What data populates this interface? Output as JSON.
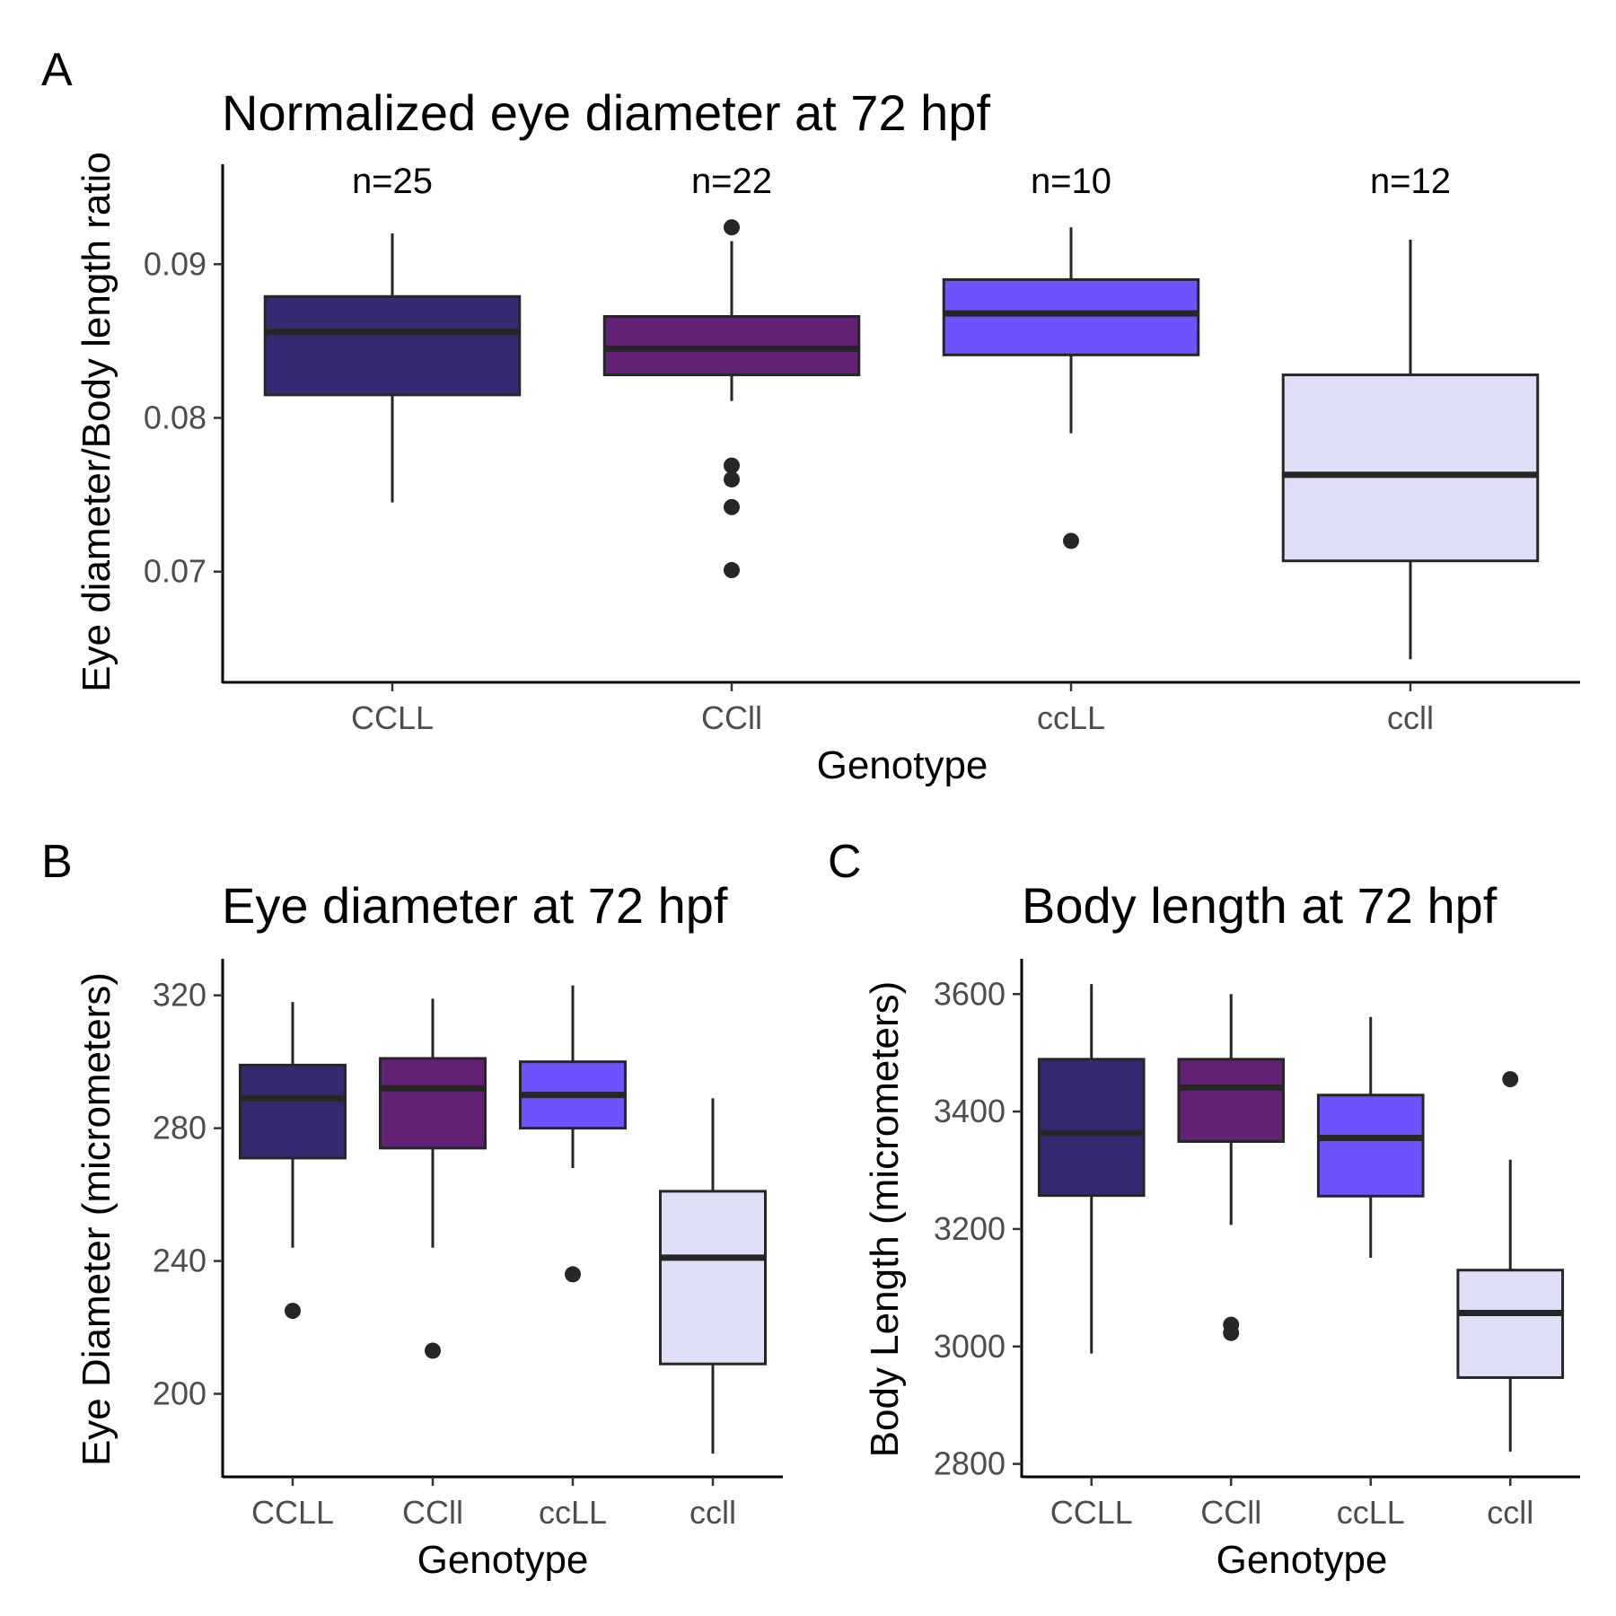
{
  "chart_data": [
    {
      "panel": "A",
      "type": "box",
      "title": "Normalized eye diameter at 72 hpf",
      "xlabel": "Genotype",
      "ylabel": "Eye diameter/Body length ratio",
      "categories": [
        "CCLL",
        "CCll",
        "ccLL",
        "ccll"
      ],
      "counts": [
        "n=25",
        "n=22",
        "n=10",
        "n=12"
      ],
      "ylim": [
        0.0628,
        0.0965
      ],
      "yticks": [
        0.07,
        0.08,
        0.09
      ],
      "ytick_labels": [
        "0.07",
        "0.08",
        "0.09"
      ],
      "boxes": [
        {
          "category": "CCLL",
          "whisker_low": 0.0745,
          "q1": 0.0815,
          "median": 0.0856,
          "q3": 0.0879,
          "whisker_high": 0.092,
          "outliers": []
        },
        {
          "category": "CCll",
          "whisker_low": 0.0811,
          "q1": 0.0828,
          "median": 0.0845,
          "q3": 0.0866,
          "whisker_high": 0.0915,
          "outliers": [
            0.0924,
            0.0769,
            0.076,
            0.0742,
            0.0701
          ]
        },
        {
          "category": "ccLL",
          "whisker_low": 0.079,
          "q1": 0.0841,
          "median": 0.0868,
          "q3": 0.089,
          "whisker_high": 0.0924,
          "outliers": [
            0.072
          ]
        },
        {
          "category": "ccll",
          "whisker_low": 0.0643,
          "q1": 0.0707,
          "median": 0.0763,
          "q3": 0.0828,
          "whisker_high": 0.0916,
          "outliers": []
        }
      ]
    },
    {
      "panel": "B",
      "type": "box",
      "title": "Eye diameter at 72 hpf",
      "xlabel": "Genotype",
      "ylabel": "Eye Diameter (micrometers)",
      "categories": [
        "CCLL",
        "CCll",
        "ccLL",
        "ccll"
      ],
      "ylim": [
        175,
        331
      ],
      "yticks": [
        200,
        240,
        280,
        320
      ],
      "ytick_labels": [
        "200",
        "240",
        "280",
        "320"
      ],
      "boxes": [
        {
          "category": "CCLL",
          "whisker_low": 244,
          "q1": 271,
          "median": 289,
          "q3": 299,
          "whisker_high": 318,
          "outliers": [
            225
          ]
        },
        {
          "category": "CCll",
          "whisker_low": 244,
          "q1": 274,
          "median": 292,
          "q3": 301,
          "whisker_high": 319,
          "outliers": [
            213
          ]
        },
        {
          "category": "ccLL",
          "whisker_low": 268,
          "q1": 280,
          "median": 290,
          "q3": 300,
          "whisker_high": 323,
          "outliers": [
            236
          ]
        },
        {
          "category": "ccll",
          "whisker_low": 182,
          "q1": 209,
          "median": 241,
          "q3": 261,
          "whisker_high": 289,
          "outliers": []
        }
      ]
    },
    {
      "panel": "C",
      "type": "box",
      "title": "Body length at 72 hpf",
      "xlabel": "Genotype",
      "ylabel": "Body Length (micrometers)",
      "categories": [
        "CCLL",
        "CCll",
        "ccLL",
        "ccll"
      ],
      "ylim": [
        2778,
        3660
      ],
      "yticks": [
        2800,
        3000,
        3200,
        3400,
        3600
      ],
      "ytick_labels": [
        "2800",
        "3000",
        "3200",
        "3400",
        "3600"
      ],
      "boxes": [
        {
          "category": "CCLL",
          "whisker_low": 2988,
          "q1": 3257,
          "median": 3363,
          "q3": 3489,
          "whisker_high": 3617,
          "outliers": []
        },
        {
          "category": "CCll",
          "whisker_low": 3207,
          "q1": 3349,
          "median": 3441,
          "q3": 3489,
          "whisker_high": 3600,
          "outliers": [
            3037,
            3023
          ]
        },
        {
          "category": "ccLL",
          "whisker_low": 3151,
          "q1": 3256,
          "median": 3355,
          "q3": 3428,
          "whisker_high": 3561,
          "outliers": []
        },
        {
          "category": "ccll",
          "whisker_low": 2821,
          "q1": 2947,
          "median": 3057,
          "q3": 3130,
          "whisker_high": 3318,
          "outliers": [
            3455
          ]
        }
      ]
    }
  ],
  "colors": {
    "CCLL": "#352a72",
    "CCll": "#632175",
    "ccLL": "#6f51fe",
    "ccll": "#dfdff7",
    "box_outline": "#262626",
    "point": "#262626"
  }
}
